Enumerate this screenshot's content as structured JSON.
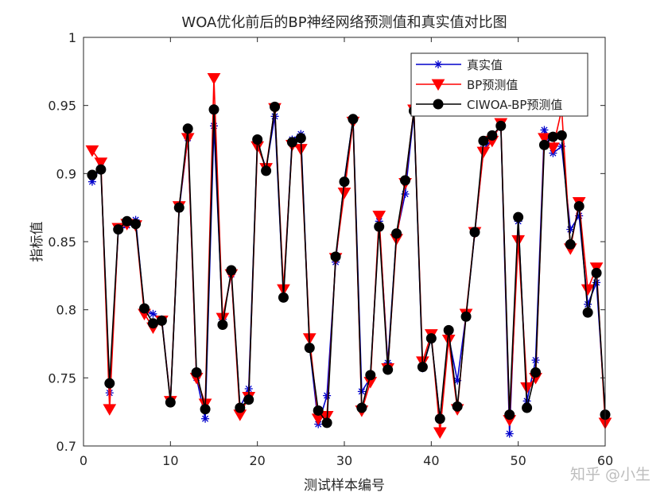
{
  "chart_data": {
    "type": "line",
    "title": "WOA优化前后的BP神经网络预测值和真实值对比图",
    "xlabel": "测试样本编号",
    "ylabel": "指标值",
    "xlim": [
      0,
      60
    ],
    "ylim": [
      0.7,
      1.0
    ],
    "xticks": [
      "0",
      "10",
      "20",
      "30",
      "40",
      "50",
      "60"
    ],
    "yticks": [
      "0.7",
      "0.75",
      "0.8",
      "0.85",
      "0.9",
      "0.95",
      "1"
    ],
    "grid": false,
    "legend_position": "top-right",
    "x": [
      1,
      2,
      3,
      4,
      5,
      6,
      7,
      8,
      9,
      10,
      11,
      12,
      13,
      14,
      15,
      16,
      17,
      18,
      19,
      20,
      21,
      22,
      23,
      24,
      25,
      26,
      27,
      28,
      29,
      30,
      31,
      32,
      33,
      34,
      35,
      36,
      37,
      38,
      39,
      40,
      41,
      42,
      43,
      44,
      45,
      46,
      47,
      48,
      49,
      50,
      51,
      52,
      53,
      54,
      55,
      56,
      57,
      58,
      59,
      60
    ],
    "series": [
      {
        "name": "真实值",
        "color": "#0000cc",
        "marker": "asterisk",
        "values": [
          0.894,
          0.905,
          0.739,
          0.858,
          0.862,
          0.866,
          0.799,
          0.797,
          0.793,
          0.733,
          0.874,
          0.926,
          0.75,
          0.72,
          0.935,
          0.793,
          0.826,
          0.728,
          0.742,
          0.922,
          0.904,
          0.942,
          0.81,
          0.925,
          0.929,
          0.773,
          0.716,
          0.737,
          0.835,
          0.895,
          0.94,
          0.74,
          0.75,
          0.865,
          0.761,
          0.855,
          0.885,
          0.945,
          0.757,
          0.779,
          0.72,
          0.78,
          0.748,
          0.796,
          0.856,
          0.918,
          0.925,
          0.936,
          0.709,
          0.865,
          0.733,
          0.763,
          0.932,
          0.915,
          0.92,
          0.859,
          0.869,
          0.804,
          0.82,
          0.724
        ]
      },
      {
        "name": "BP预测值",
        "color": "#ff0000",
        "marker": "triangle-down",
        "values": [
          0.917,
          0.908,
          0.727,
          0.86,
          0.863,
          0.862,
          0.797,
          0.787,
          0.792,
          0.733,
          0.876,
          0.926,
          0.75,
          0.731,
          0.97,
          0.794,
          0.826,
          0.723,
          0.736,
          0.92,
          0.904,
          0.948,
          0.815,
          0.921,
          0.918,
          0.779,
          0.72,
          0.722,
          0.838,
          0.886,
          0.938,
          0.726,
          0.747,
          0.869,
          0.757,
          0.852,
          0.893,
          0.947,
          0.762,
          0.782,
          0.71,
          0.778,
          0.727,
          0.797,
          0.857,
          0.916,
          0.924,
          0.937,
          0.719,
          0.851,
          0.743,
          0.75,
          0.926,
          0.919,
          0.947,
          0.845,
          0.879,
          0.815,
          0.831,
          0.717
        ]
      },
      {
        "name": "CIWOA-BP预测值",
        "color": "#000000",
        "marker": "circle",
        "values": [
          0.899,
          0.903,
          0.746,
          0.859,
          0.865,
          0.863,
          0.801,
          0.79,
          0.792,
          0.732,
          0.875,
          0.933,
          0.754,
          0.727,
          0.947,
          0.789,
          0.829,
          0.728,
          0.734,
          0.925,
          0.902,
          0.949,
          0.809,
          0.923,
          0.926,
          0.772,
          0.726,
          0.717,
          0.839,
          0.894,
          0.94,
          0.728,
          0.752,
          0.861,
          0.756,
          0.856,
          0.895,
          0.946,
          0.758,
          0.779,
          0.72,
          0.785,
          0.729,
          0.795,
          0.857,
          0.924,
          0.928,
          0.935,
          0.723,
          0.868,
          0.728,
          0.754,
          0.921,
          0.927,
          0.928,
          0.848,
          0.876,
          0.798,
          0.827,
          0.723
        ]
      }
    ]
  },
  "watermark": "知乎 @小生"
}
